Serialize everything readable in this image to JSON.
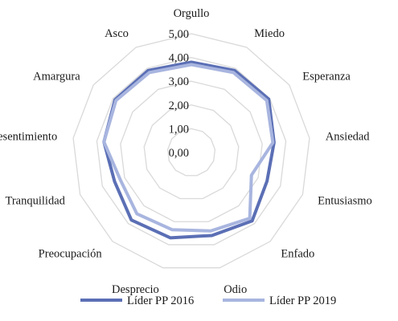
{
  "chart_data": {
    "type": "radar",
    "title": "",
    "categories": [
      "Orgullo",
      "Miedo",
      "Esperanza",
      "Ansiedad",
      "Entusiasmo",
      "Enfado",
      "Odio",
      "Desprecio",
      "Preocupación",
      "Tranquilidad",
      "Resentimiento",
      "Amargura",
      "Asco"
    ],
    "range": [
      0,
      5
    ],
    "ticks": [
      "0,00",
      "1,00",
      "2,00",
      "3,00",
      "4,00",
      "5,00"
    ],
    "series": [
      {
        "name": "Líder PP 2016",
        "color": "#5b6fb5",
        "values": [
          3.8,
          3.9,
          3.95,
          3.5,
          3.4,
          3.85,
          3.6,
          3.7,
          3.8,
          3.45,
          3.7,
          3.9,
          3.9
        ]
      },
      {
        "name": "Líder PP 2019",
        "color": "#a8b5df",
        "values": [
          3.7,
          3.8,
          3.85,
          3.45,
          2.7,
          3.7,
          3.4,
          3.35,
          3.45,
          3.2,
          3.7,
          3.85,
          3.8
        ]
      }
    ],
    "gridlines": true,
    "legend_position": "bottom",
    "grid_color": "#d9d9d9"
  }
}
